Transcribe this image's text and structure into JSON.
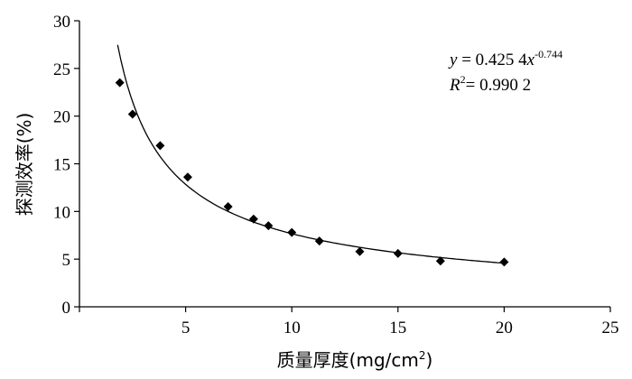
{
  "chart_data": {
    "type": "scatter",
    "xlabel_main": "质量厚度(mg/cm",
    "xlabel_sup": "2",
    "xlabel_close": ")",
    "ylabel": "探测效率(%)",
    "xlim": [
      0,
      25
    ],
    "ylim": [
      0,
      30
    ],
    "xticks": [
      0,
      5,
      10,
      15,
      20,
      25
    ],
    "yticks": [
      0,
      5,
      10,
      15,
      20,
      25,
      30
    ],
    "grid": false,
    "series": [
      {
        "marker": "diamond",
        "points": [
          {
            "x": 1.9,
            "y": 23.5
          },
          {
            "x": 2.5,
            "y": 20.2
          },
          {
            "x": 3.8,
            "y": 16.9
          },
          {
            "x": 5.1,
            "y": 13.6
          },
          {
            "x": 7.0,
            "y": 10.5
          },
          {
            "x": 8.2,
            "y": 9.2
          },
          {
            "x": 8.9,
            "y": 8.5
          },
          {
            "x": 10.0,
            "y": 7.8
          },
          {
            "x": 11.3,
            "y": 6.9
          },
          {
            "x": 13.2,
            "y": 5.8
          },
          {
            "x": 15.0,
            "y": 5.6
          },
          {
            "x": 17.0,
            "y": 4.8
          },
          {
            "x": 20.0,
            "y": 4.7
          }
        ]
      }
    ],
    "fit": {
      "kind": "power",
      "a": 42.54,
      "b": -0.744,
      "x_range": [
        1.8,
        20.0
      ]
    },
    "equation": {
      "y_var": "y",
      "eq_main": " = 0.425 4",
      "x_var": "x",
      "exponent": "-0.744",
      "r_var": "R",
      "r_sup": "2",
      "r_value": "= 0.990 2"
    }
  }
}
